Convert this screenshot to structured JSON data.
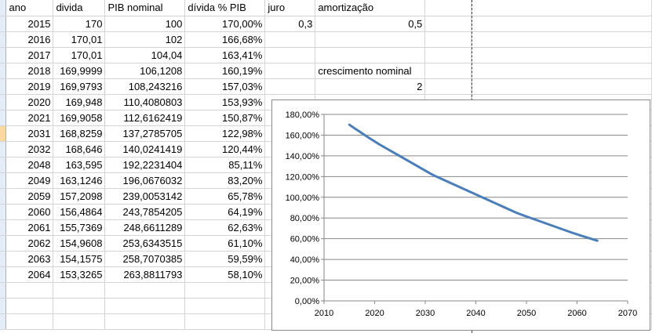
{
  "sheet": {
    "headers": [
      "ano",
      "divida",
      "PIB nominal",
      "dívida % PIB",
      "juro",
      "amortização"
    ],
    "rows": [
      {
        "ano": "2015",
        "divida": "170",
        "pib": "100",
        "pct": "170,00%",
        "e": "0,3",
        "f": "0,5"
      },
      {
        "ano": "2016",
        "divida": "170,01",
        "pib": "102",
        "pct": "166,68%",
        "e": "",
        "f": ""
      },
      {
        "ano": "2017",
        "divida": "170,01",
        "pib": "104,04",
        "pct": "163,41%",
        "e": "",
        "f": ""
      },
      {
        "ano": "2018",
        "divida": "169,9999",
        "pib": "106,1208",
        "pct": "160,19%",
        "e": "",
        "f": "crescimento nominal"
      },
      {
        "ano": "2019",
        "divida": "169,9793",
        "pib": "108,243216",
        "pct": "157,03%",
        "e": "",
        "f": "2"
      },
      {
        "ano": "2020",
        "divida": "169,948",
        "pib": "110,4080803",
        "pct": "153,93%",
        "e": "",
        "f": ""
      },
      {
        "ano": "2021",
        "divida": "169,9058",
        "pib": "112,6162419",
        "pct": "150,87%",
        "e": "",
        "f": ""
      },
      {
        "ano": "2031",
        "divida": "168,8259",
        "pib": "137,2785705",
        "pct": "122,98%",
        "e": "",
        "f": ""
      },
      {
        "ano": "2032",
        "divida": "168,646",
        "pib": "140,0241419",
        "pct": "120,44%",
        "e": "",
        "f": ""
      },
      {
        "ano": "2048",
        "divida": "163,595",
        "pib": "192,2231404",
        "pct": "85,11%",
        "e": "",
        "f": ""
      },
      {
        "ano": "2049",
        "divida": "163,1246",
        "pib": "196,0676032",
        "pct": "83,20%",
        "e": "",
        "f": ""
      },
      {
        "ano": "2059",
        "divida": "157,2098",
        "pib": "239,0053142",
        "pct": "65,78%",
        "e": "",
        "f": ""
      },
      {
        "ano": "2060",
        "divida": "156,4864",
        "pib": "243,7854205",
        "pct": "64,19%",
        "e": "",
        "f": ""
      },
      {
        "ano": "2061",
        "divida": "155,7369",
        "pib": "248,6611289",
        "pct": "62,63%",
        "e": "",
        "f": ""
      },
      {
        "ano": "2062",
        "divida": "154,9608",
        "pib": "253,6343515",
        "pct": "61,10%",
        "e": "",
        "f": ""
      },
      {
        "ano": "2063",
        "divida": "154,1575",
        "pib": "258,7070385",
        "pct": "59,59%",
        "e": "",
        "f": ""
      },
      {
        "ano": "2064",
        "divida": "153,3265",
        "pib": "263,8811793",
        "pct": "58,10%",
        "e": "",
        "f": ""
      }
    ]
  },
  "chart_data": {
    "type": "line",
    "title": "",
    "xlabel": "",
    "ylabel": "",
    "x_ticks": [
      "2010",
      "2020",
      "2030",
      "2040",
      "2050",
      "2060",
      "2070"
    ],
    "y_ticks": [
      "0,00%",
      "20,00%",
      "40,00%",
      "60,00%",
      "80,00%",
      "100,00%",
      "120,00%",
      "140,00%",
      "160,00%",
      "180,00%"
    ],
    "xlim": [
      2010,
      2070
    ],
    "ylim": [
      0,
      1.8
    ],
    "grid": "horizontal",
    "legend": "none",
    "line_color": "#4a7ebb",
    "series": [
      {
        "x": [
          2015,
          2016,
          2017,
          2018,
          2019,
          2020,
          2021,
          2031,
          2032,
          2048,
          2049,
          2059,
          2060,
          2061,
          2062,
          2063,
          2064
        ],
        "values": [
          1.7,
          1.6668,
          1.6341,
          1.6019,
          1.5703,
          1.5393,
          1.5087,
          1.2298,
          1.2044,
          0.8511,
          0.832,
          0.6578,
          0.6419,
          0.6263,
          0.611,
          0.5959,
          0.581
        ]
      }
    ]
  }
}
